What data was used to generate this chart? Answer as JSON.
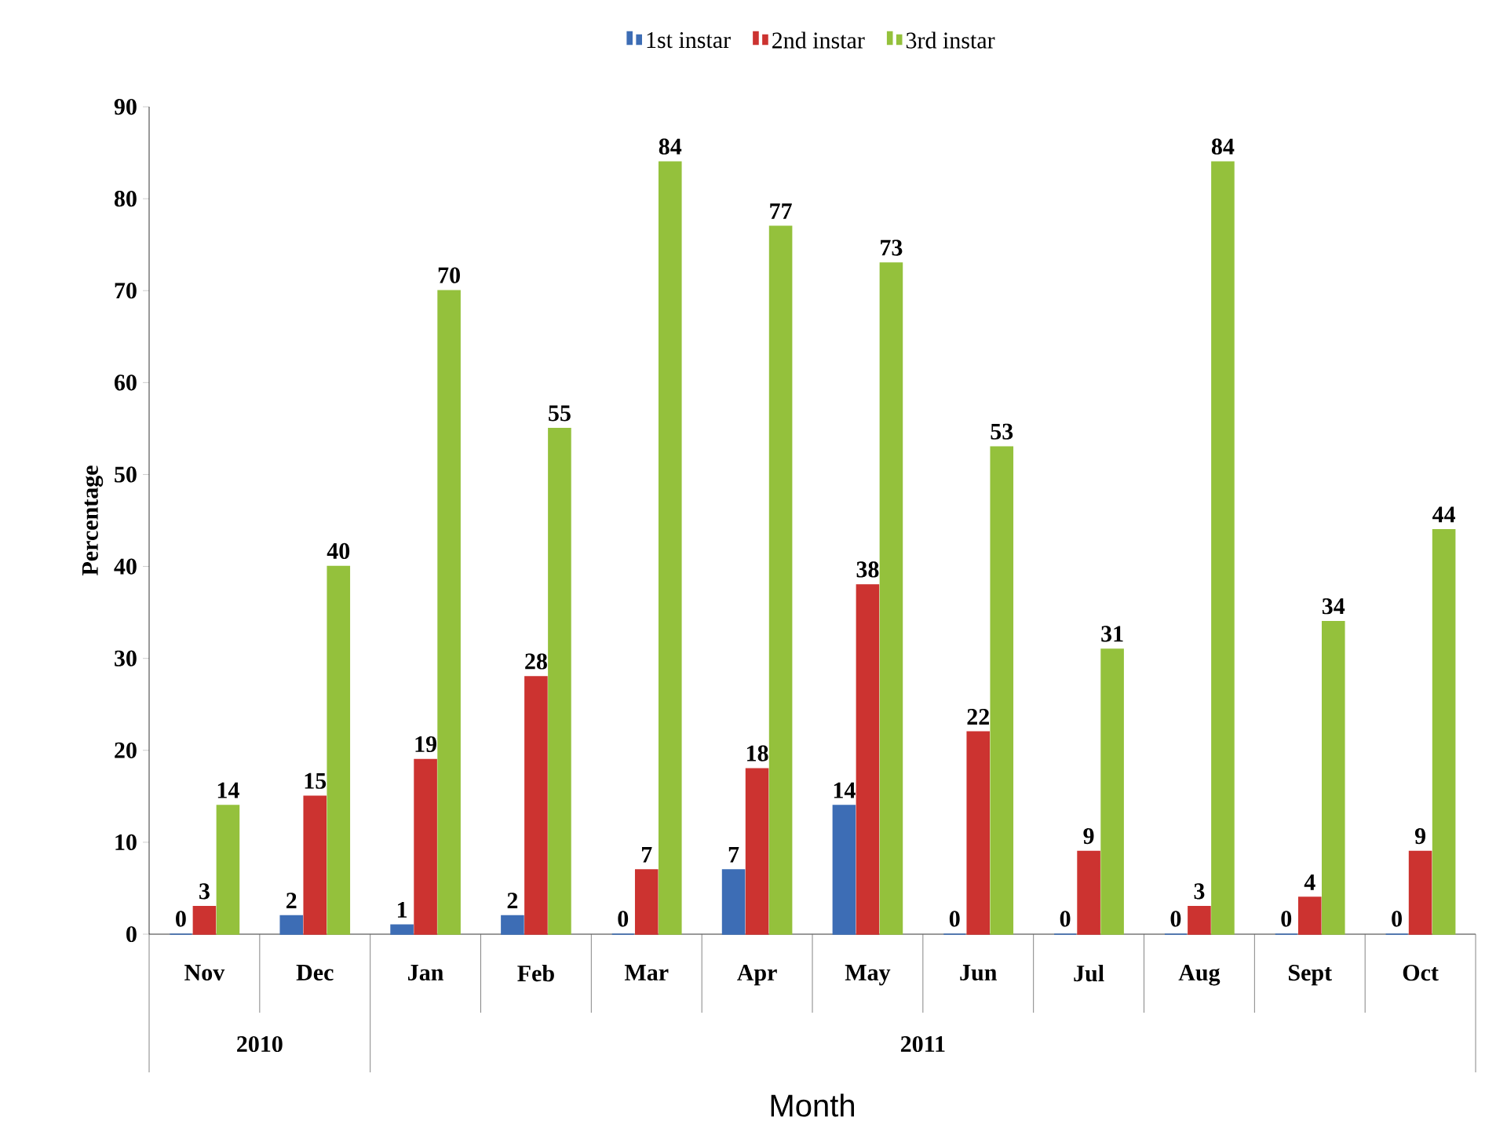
{
  "chart_data": {
    "type": "bar",
    "xlabel": "Month",
    "ylabel": "Percentage",
    "categories": [
      "Nov",
      "Dec",
      "Jan",
      "Feb",
      "Mar",
      "Apr",
      "May",
      "Jun",
      "Jul",
      "Aug",
      "Sept",
      "Oct"
    ],
    "series": [
      {
        "name": "1st instar",
        "color": "#3d6db5",
        "values": [
          0,
          2,
          1,
          2,
          0,
          7,
          14,
          0,
          0,
          0,
          0,
          0
        ]
      },
      {
        "name": "2nd instar",
        "color": "#cc3330",
        "values": [
          3,
          15,
          19,
          28,
          7,
          18,
          38,
          22,
          9,
          3,
          4,
          9
        ]
      },
      {
        "name": "3rd instar",
        "color": "#94c13c",
        "values": [
          14,
          40,
          70,
          55,
          84,
          77,
          73,
          53,
          31,
          84,
          34,
          44
        ]
      }
    ],
    "ylim": [
      0,
      90
    ],
    "yticks": [
      0,
      10,
      20,
      30,
      40,
      50,
      60,
      70,
      80,
      90
    ],
    "data_labels": true,
    "legend": "top",
    "grid": false,
    "annotations": [
      "2010",
      "2011"
    ]
  }
}
